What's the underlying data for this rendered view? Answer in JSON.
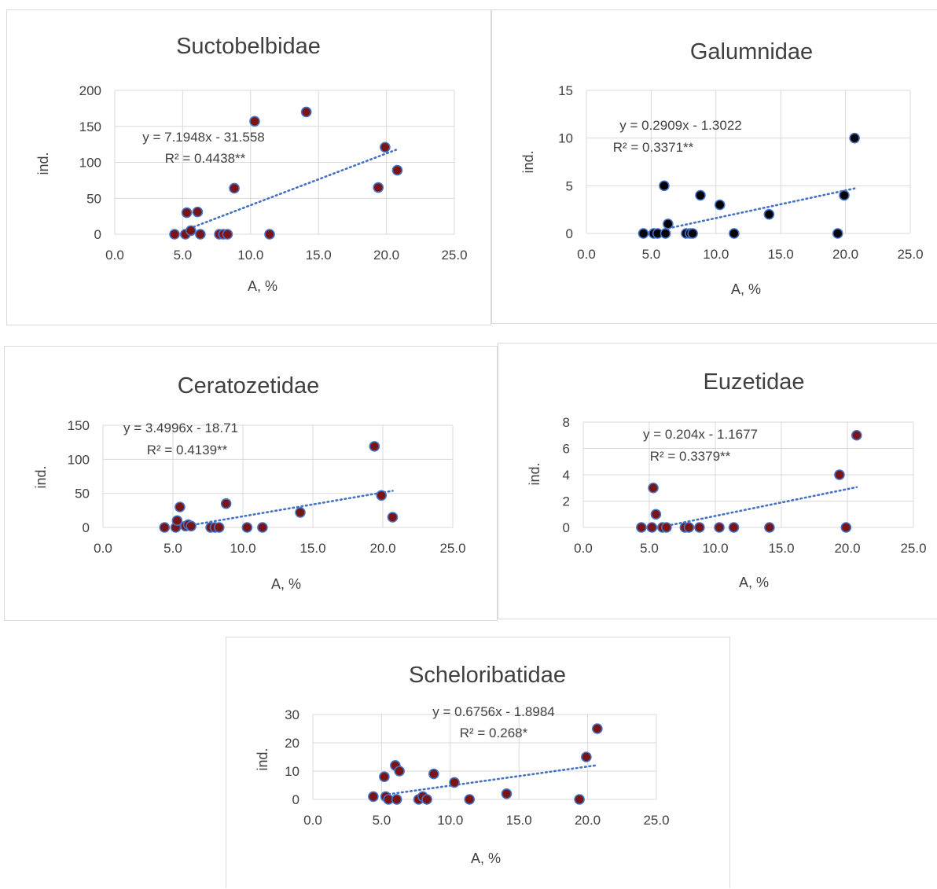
{
  "colors": {
    "grid": "#d9d9d9",
    "marker_border": "#4472c4",
    "trend": "#4472c4",
    "marker_dark_red": "#7b1414",
    "marker_black": "#000000"
  },
  "chart_data": [
    {
      "type": "scatter",
      "title": "Suctobelbidae",
      "xlabel": "A, %",
      "ylabel": "ind.",
      "xlim": [
        0,
        25
      ],
      "xticks": [
        0,
        5,
        10,
        15,
        20,
        25
      ],
      "xtick_labels": [
        "0.0",
        "5.0",
        "10.0",
        "15.0",
        "20.0",
        "25.0"
      ],
      "ylim": [
        0,
        200
      ],
      "yticks": [
        0,
        50,
        100,
        150,
        200
      ],
      "ytick_labels": [
        "0",
        "50",
        "100",
        "150",
        "200"
      ],
      "grid": true,
      "marker_color": "#7b1414",
      "trendline": {
        "slope": 7.1948,
        "intercept": -31.558,
        "x_range": [
          5.5,
          20.7
        ],
        "equation": "y = 7.1948x - 31.558",
        "r2": "R² = 0.4438**"
      },
      "points": [
        [
          4.4,
          0
        ],
        [
          5.2,
          0
        ],
        [
          5.3,
          30
        ],
        [
          5.6,
          5
        ],
        [
          6.1,
          31
        ],
        [
          6.3,
          0
        ],
        [
          7.7,
          0
        ],
        [
          8.0,
          0
        ],
        [
          8.3,
          0
        ],
        [
          8.8,
          64
        ],
        [
          10.3,
          157
        ],
        [
          11.4,
          0
        ],
        [
          14.1,
          170
        ],
        [
          19.4,
          65
        ],
        [
          19.9,
          121
        ],
        [
          20.8,
          89
        ]
      ]
    },
    {
      "type": "scatter",
      "title": "Galumnidae",
      "xlabel": "A, %",
      "ylabel": "ind.",
      "xlim": [
        0,
        25
      ],
      "xticks": [
        0,
        5,
        10,
        15,
        20,
        25
      ],
      "xtick_labels": [
        "0.0",
        "5.0",
        "10.0",
        "15.0",
        "20.0",
        "25.0"
      ],
      "ylim": [
        0,
        15
      ],
      "yticks": [
        0,
        5,
        10,
        15
      ],
      "ytick_labels": [
        "0",
        "5",
        "10",
        "15"
      ],
      "grid": true,
      "marker_color": "#000000",
      "trendline": {
        "slope": 0.2909,
        "intercept": -1.3022,
        "x_range": [
          6.0,
          20.7
        ],
        "equation": "y = 0.2909x - 1.3022",
        "r2": "R² = 0.3371**"
      },
      "points": [
        [
          4.4,
          0
        ],
        [
          5.2,
          0
        ],
        [
          5.5,
          0
        ],
        [
          6.0,
          5
        ],
        [
          6.1,
          0
        ],
        [
          6.3,
          1
        ],
        [
          7.7,
          0
        ],
        [
          8.0,
          0
        ],
        [
          8.2,
          0
        ],
        [
          8.8,
          4
        ],
        [
          10.3,
          3
        ],
        [
          11.4,
          0
        ],
        [
          14.1,
          2
        ],
        [
          19.4,
          0
        ],
        [
          19.9,
          4
        ],
        [
          20.7,
          10
        ]
      ]
    },
    {
      "type": "scatter",
      "title": "Ceratozetidae",
      "xlabel": "A, %",
      "ylabel": "ind.",
      "xlim": [
        0,
        25
      ],
      "xticks": [
        0,
        5,
        10,
        15,
        20,
        25
      ],
      "xtick_labels": [
        "0.0",
        "5.0",
        "10.0",
        "15.0",
        "20.0",
        "25.0"
      ],
      "ylim": [
        0,
        150
      ],
      "yticks": [
        0,
        50,
        100,
        150
      ],
      "ytick_labels": [
        "0",
        "50",
        "100",
        "150"
      ],
      "grid": true,
      "marker_color": "#7b1414",
      "trendline": {
        "slope": 3.4996,
        "intercept": -18.71,
        "x_range": [
          5.5,
          20.7
        ],
        "equation": "y = 3.4996x - 18.71",
        "r2": "R² = 0.4139**"
      },
      "points": [
        [
          4.4,
          0
        ],
        [
          5.2,
          0
        ],
        [
          5.3,
          10
        ],
        [
          5.5,
          30
        ],
        [
          5.9,
          2
        ],
        [
          6.1,
          4
        ],
        [
          6.3,
          2
        ],
        [
          7.7,
          0
        ],
        [
          8.0,
          0
        ],
        [
          8.3,
          0
        ],
        [
          8.8,
          35
        ],
        [
          10.3,
          0
        ],
        [
          11.4,
          0
        ],
        [
          14.1,
          22
        ],
        [
          19.4,
          119
        ],
        [
          19.9,
          47
        ],
        [
          20.7,
          15
        ]
      ]
    },
    {
      "type": "scatter",
      "title": "Euzetidae",
      "xlabel": "A, %",
      "ylabel": "ind.",
      "xlim": [
        0,
        25
      ],
      "xticks": [
        0,
        5,
        10,
        15,
        20,
        25
      ],
      "xtick_labels": [
        "0.0",
        "5.0",
        "10.0",
        "15.0",
        "20.0",
        "25.0"
      ],
      "ylim": [
        0,
        8
      ],
      "yticks": [
        0,
        2,
        4,
        6,
        8
      ],
      "ytick_labels": [
        "0",
        "2",
        "4",
        "6",
        "8"
      ],
      "grid": true,
      "marker_color": "#7b1414",
      "trendline": {
        "slope": 0.204,
        "intercept": -1.1677,
        "x_range": [
          6.0,
          20.7
        ],
        "equation": "y = 0.204x - 1.1677",
        "r2": "R² = 0.3379**"
      },
      "points": [
        [
          4.4,
          0
        ],
        [
          5.2,
          0
        ],
        [
          5.3,
          3
        ],
        [
          5.5,
          1
        ],
        [
          6.0,
          0
        ],
        [
          6.3,
          0
        ],
        [
          7.7,
          0
        ],
        [
          8.0,
          0
        ],
        [
          8.8,
          0
        ],
        [
          10.3,
          0
        ],
        [
          11.4,
          0
        ],
        [
          14.1,
          0
        ],
        [
          19.4,
          4
        ],
        [
          19.9,
          0
        ],
        [
          20.7,
          7
        ]
      ]
    },
    {
      "type": "scatter",
      "title": "Scheloribatidae",
      "xlabel": "A, %",
      "ylabel": "ind.",
      "xlim": [
        0,
        25
      ],
      "xticks": [
        0,
        5,
        10,
        15,
        20,
        25
      ],
      "xtick_labels": [
        "0.0",
        "5.0",
        "10.0",
        "15.0",
        "20.0",
        "25.0"
      ],
      "ylim": [
        0,
        30
      ],
      "yticks": [
        0,
        10,
        20,
        30
      ],
      "ytick_labels": [
        "0",
        "10",
        "20",
        "30"
      ],
      "grid": true,
      "marker_color": "#7b1414",
      "trendline": {
        "slope": 0.6756,
        "intercept": -1.8984,
        "x_range": [
          5.2,
          20.7
        ],
        "equation": "y = 0.6756x - 1.8984",
        "r2": "R² = 0.268*"
      },
      "points": [
        [
          4.4,
          1
        ],
        [
          5.2,
          8
        ],
        [
          5.3,
          1
        ],
        [
          5.5,
          0
        ],
        [
          6.0,
          12
        ],
        [
          6.1,
          0
        ],
        [
          6.3,
          10
        ],
        [
          7.7,
          0
        ],
        [
          8.0,
          1
        ],
        [
          8.3,
          0
        ],
        [
          8.8,
          9
        ],
        [
          10.3,
          6
        ],
        [
          11.4,
          0
        ],
        [
          14.1,
          2
        ],
        [
          19.4,
          0
        ],
        [
          19.9,
          15
        ],
        [
          20.7,
          25
        ]
      ]
    }
  ]
}
